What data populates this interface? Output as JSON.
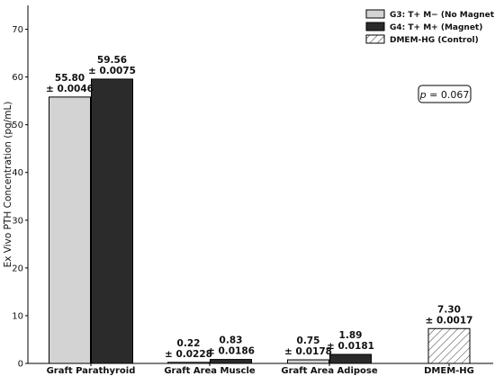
{
  "chart_data": {
    "type": "bar",
    "title": "",
    "xlabel": "",
    "ylabel": "Ex Vivo PTH Concentration (pg/mL)",
    "ylim": [
      0,
      75
    ],
    "yticks": [
      0,
      10,
      20,
      30,
      40,
      50,
      60,
      70
    ],
    "grid": false,
    "legend_position": "top-right",
    "categories": [
      "Graft Parathyroid",
      "Graft Area Muscle",
      "Graft Area Adipose",
      "DMEM-HG"
    ],
    "series": [
      {
        "name": "G3: T+ M− (No Magnet)",
        "style": "solid",
        "color": "#d3d3d3",
        "values": [
          55.8,
          0.22,
          0.75,
          null
        ],
        "labels": [
          "55.80\n± 0.0046",
          "0.22\n± 0.0228",
          "0.75\n± 0.0178",
          null
        ]
      },
      {
        "name": "G4: T+ M+ (Magnet)",
        "style": "solid",
        "color": "#2b2b2b",
        "values": [
          59.56,
          0.83,
          1.89,
          null
        ],
        "labels": [
          "59.56\n± 0.0075",
          "0.83\n± 0.0186",
          "1.89\n± 0.0181",
          null
        ]
      },
      {
        "name": "DMEM-HG (Control)",
        "style": "hatched",
        "color": "#ffffff",
        "values": [
          null,
          null,
          null,
          7.3
        ],
        "labels": [
          null,
          null,
          null,
          "7.30\n± 0.0017"
        ]
      }
    ],
    "annotation": "p = 0.067"
  }
}
